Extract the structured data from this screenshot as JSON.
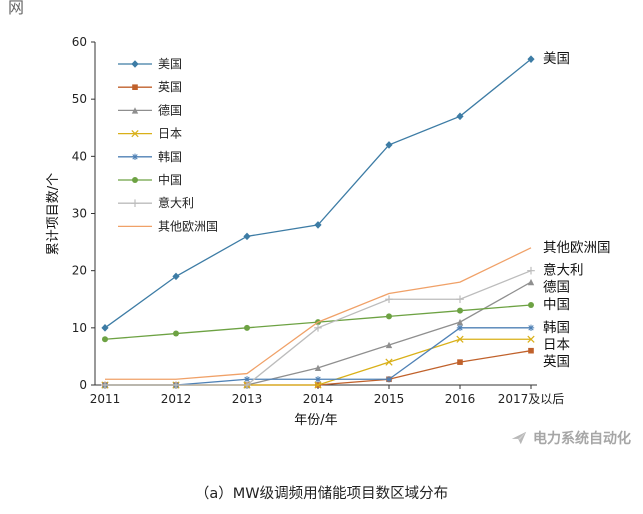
{
  "page": {
    "corner_text": "网",
    "caption": "（a）MW级调频用储能项目数区域分布",
    "watermark": "电力系统自动化"
  },
  "chart_data": {
    "type": "line",
    "title": "",
    "xlabel": "年份/年",
    "ylabel": "累计项目数/个",
    "x_categories": [
      "2011",
      "2012",
      "2013",
      "2014",
      "2015",
      "2016",
      "2017及以后"
    ],
    "ylim": [
      0,
      60
    ],
    "ytick_step": 10,
    "grid": false,
    "legend_position": "top-left-inside",
    "series": [
      {
        "name": "美国",
        "color": "#3d7ca5",
        "marker": "diamond",
        "values": [
          10,
          19,
          26,
          28,
          42,
          47,
          57
        ]
      },
      {
        "name": "英国",
        "color": "#c0612b",
        "marker": "square",
        "values": [
          0,
          0,
          0,
          0,
          1,
          4,
          6
        ]
      },
      {
        "name": "德国",
        "color": "#8f8f8f",
        "marker": "triangle",
        "values": [
          0,
          0,
          0,
          3,
          7,
          11,
          18
        ]
      },
      {
        "name": "日本",
        "color": "#d9b018",
        "marker": "x",
        "values": [
          0,
          0,
          0,
          0,
          4,
          8,
          8
        ]
      },
      {
        "name": "韩国",
        "color": "#4f81b5",
        "marker": "asterisk",
        "values": [
          0,
          0,
          1,
          1,
          1,
          10,
          10
        ]
      },
      {
        "name": "中国",
        "color": "#6da243",
        "marker": "circle",
        "values": [
          8,
          9,
          10,
          11,
          12,
          13,
          14
        ]
      },
      {
        "name": "意大利",
        "color": "#bcbcbc",
        "marker": "plus",
        "values": [
          0,
          0,
          0,
          10,
          15,
          15,
          20
        ]
      },
      {
        "name": "其他欧洲国",
        "color": "#f0a168",
        "marker": "none",
        "values": [
          1,
          1,
          2,
          11,
          16,
          18,
          24
        ]
      }
    ],
    "end_labels": [
      "美国",
      "其他欧洲国",
      "意大利",
      "德国",
      "中国",
      "韩国",
      "日本",
      "英国"
    ]
  }
}
